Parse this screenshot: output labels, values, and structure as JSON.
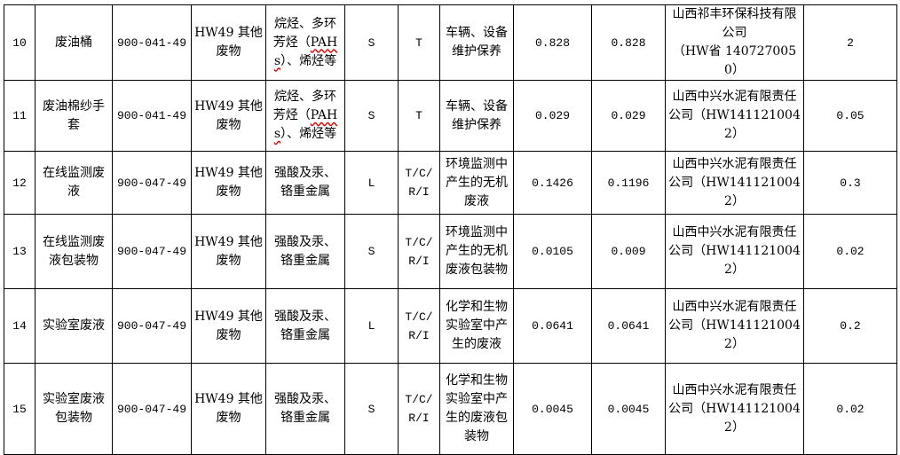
{
  "rows": [
    {
      "no": "10",
      "name": "废油桶",
      "code": "900-041-49",
      "category": "HW49 其他废物",
      "hazard_pre": "烷烃、多环芳烃（",
      "hazard_mid": "PAHs",
      "hazard_post": "）、烯烃等",
      "form": "S",
      "property": "T",
      "source": "车辆、设备维护保养",
      "amount1": "0.828",
      "amount2": "0.828",
      "company": "山西祁丰环保科技有限公司",
      "company_code": "（HW省 1407270050）",
      "capacity": "2"
    },
    {
      "no": "11",
      "name": "废油棉纱手套",
      "code": "900-041-49",
      "category": "HW49 其他废物",
      "hazard_pre": "烷烃、多环芳烃（",
      "hazard_mid": "PAHs",
      "hazard_post": "）、烯烃等",
      "form": "S",
      "property": "T",
      "source": "车辆、设备维护保养",
      "amount1": "0.029",
      "amount2": "0.029",
      "company": "山西中兴水泥有限责任公司（HW1411210042）",
      "company_code": "",
      "capacity": "0.05"
    },
    {
      "no": "12",
      "name": "在线监测废液",
      "code": "900-047-49",
      "category": "HW49 其他废物",
      "hazard_pre": "强酸及汞、铬重金属",
      "hazard_mid": "",
      "hazard_post": "",
      "form": "L",
      "property": "T/C/R/I",
      "source": "环境监测中产生的无机废液",
      "amount1": "0.1426",
      "amount2": "0.1196",
      "company": "山西中兴水泥有限责任公司（HW1411210042）",
      "company_code": "",
      "capacity": "0.3"
    },
    {
      "no": "13",
      "name": "在线监测废液包装物",
      "code": "900-047-49",
      "category": "HW49 其他废物",
      "hazard_pre": "强酸及汞、铬重金属",
      "hazard_mid": "",
      "hazard_post": "",
      "form": "S",
      "property": "T/C/R/I",
      "source": "环境监测中产生的无机废液包装物",
      "amount1": "0.0105",
      "amount2": "0.009",
      "company": "山西中兴水泥有限责任公司（HW1411210042）",
      "company_code": "",
      "capacity": "0.02"
    },
    {
      "no": "14",
      "name": "实验室废液",
      "code": "900-047-49",
      "category": "HW49 其他废物",
      "hazard_pre": "强酸及汞、铬重金属",
      "hazard_mid": "",
      "hazard_post": "",
      "form": "L",
      "property": "T/C/R/I",
      "source": "化学和生物实验室中产生的废液",
      "amount1": "0.0641",
      "amount2": "0.0641",
      "company": "山西中兴水泥有限责任公司（HW1411210042）",
      "company_code": "",
      "capacity": "0.2"
    },
    {
      "no": "15",
      "name": "实验室废液包装物",
      "code": "900-047-49",
      "category": "HW49 其他废物",
      "hazard_pre": "强酸及汞、铬重金属",
      "hazard_mid": "",
      "hazard_post": "",
      "form": "S",
      "property": "T/C/R/I",
      "source": "化学和生物实验室中产生的废液包装物",
      "amount1": "0.0045",
      "amount2": "0.0045",
      "company": "山西中兴水泥有限责任公司（HW1411210042）",
      "company_code": "",
      "capacity": "0.02"
    }
  ]
}
